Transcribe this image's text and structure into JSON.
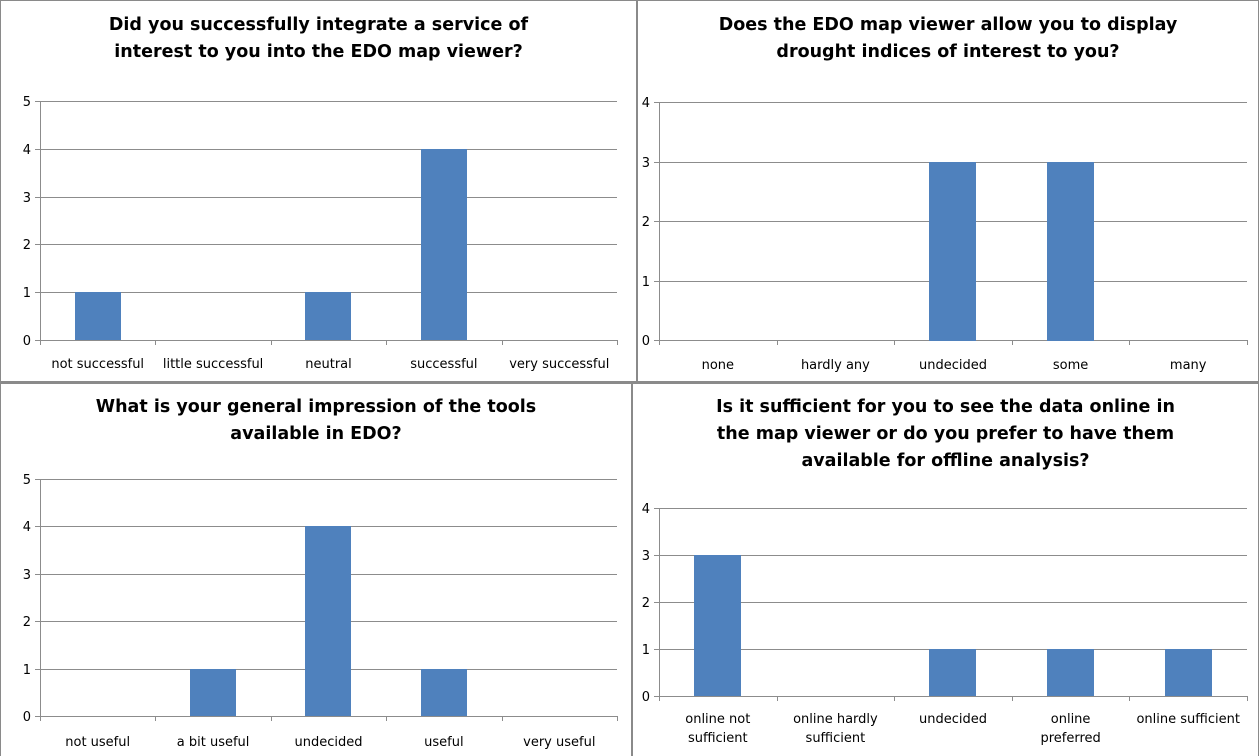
{
  "chart_data": [
    {
      "type": "bar",
      "title": [
        "Did you successfully integrate a service of",
        "interest to you into the EDO map viewer?"
      ],
      "categories": [
        [
          "not successful"
        ],
        [
          "little successful"
        ],
        [
          "neutral"
        ],
        [
          "successful"
        ],
        [
          "very successful"
        ]
      ],
      "values": [
        1,
        0,
        1,
        4,
        0
      ],
      "ylim": [
        0,
        5
      ],
      "yticks": [
        "0",
        "1",
        "2",
        "3",
        "4",
        "5"
      ],
      "grid": true,
      "bar_color": "#4f81bd"
    },
    {
      "type": "bar",
      "title": [
        "Does the EDO map viewer allow you to display",
        "drought indices of interest to you?"
      ],
      "categories": [
        [
          "none"
        ],
        [
          "hardly any"
        ],
        [
          "undecided"
        ],
        [
          "some"
        ],
        [
          "many"
        ]
      ],
      "values": [
        0,
        0,
        3,
        3,
        0
      ],
      "ylim": [
        0,
        4
      ],
      "yticks": [
        "0",
        "1",
        "2",
        "3",
        "4"
      ],
      "grid": true,
      "bar_color": "#4f81bd"
    },
    {
      "type": "bar",
      "title": [
        "What is your general impression of the tools",
        "available in EDO?"
      ],
      "categories": [
        [
          "not useful"
        ],
        [
          "a bit useful"
        ],
        [
          "undecided"
        ],
        [
          "useful"
        ],
        [
          "very useful"
        ]
      ],
      "values": [
        0,
        1,
        4,
        1,
        0
      ],
      "ylim": [
        0,
        5
      ],
      "yticks": [
        "0",
        "1",
        "2",
        "3",
        "4",
        "5"
      ],
      "grid": true,
      "bar_color": "#4f81bd"
    },
    {
      "type": "bar",
      "title": [
        "Is it sufficient for you to see the data online in",
        "the map viewer or do you prefer to have them",
        "available for offline analysis?"
      ],
      "categories": [
        [
          "online not",
          "sufficient"
        ],
        [
          "online hardly",
          "sufficient"
        ],
        [
          "undecided"
        ],
        [
          "online",
          "preferred"
        ],
        [
          "online sufficient"
        ]
      ],
      "values": [
        3,
        0,
        1,
        1,
        1
      ],
      "ylim": [
        0,
        4
      ],
      "yticks": [
        "0",
        "1",
        "2",
        "3",
        "4"
      ],
      "grid": true,
      "bar_color": "#4f81bd"
    }
  ]
}
